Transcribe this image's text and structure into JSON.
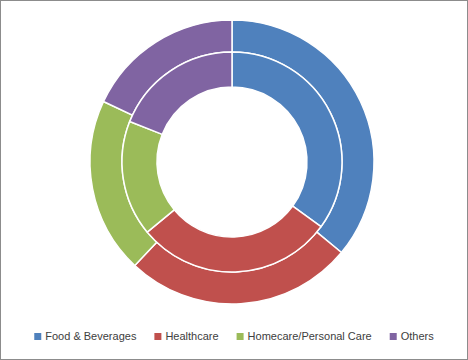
{
  "chart_data": {
    "type": "donut",
    "categories": [
      "Food & Beverages",
      "Healthcare",
      "Homecare/Personal Care",
      "Others"
    ],
    "colors": [
      "#4f81bd",
      "#c0504d",
      "#9bbb59",
      "#8064a2"
    ],
    "series": [
      {
        "values": [
          36,
          26,
          20,
          18
        ]
      },
      {
        "values": [
          35,
          29,
          17,
          19
        ]
      }
    ],
    "legend": "bottom"
  }
}
